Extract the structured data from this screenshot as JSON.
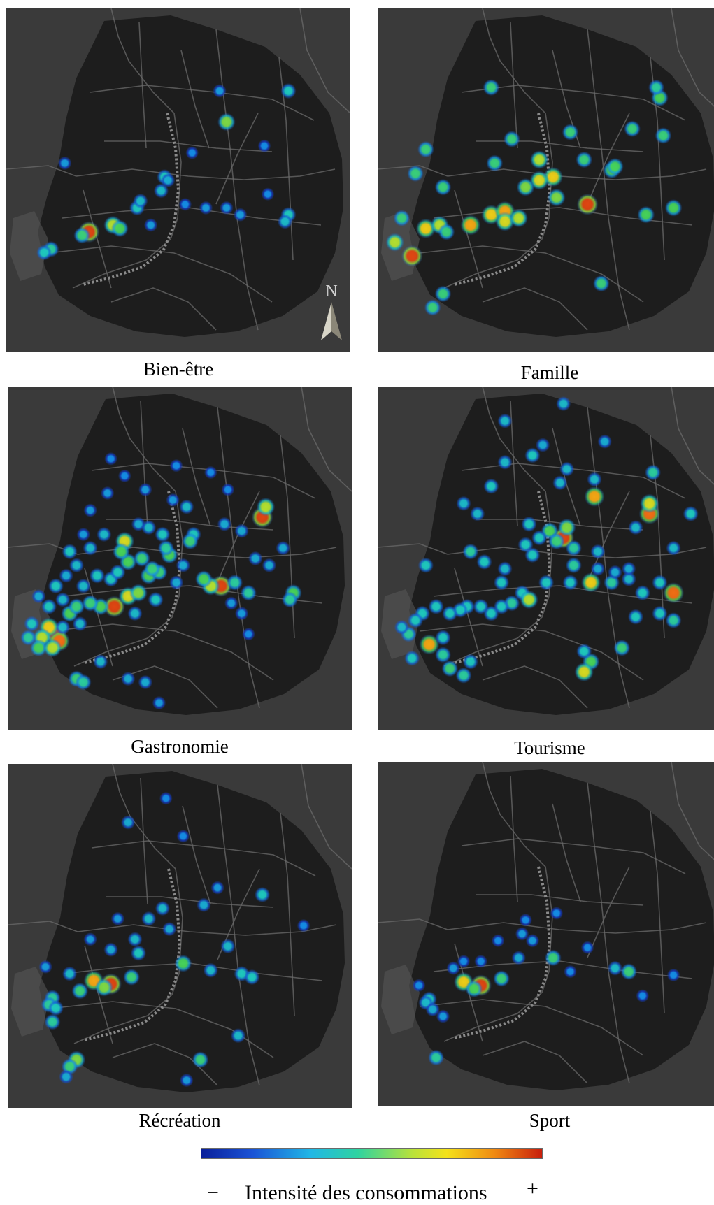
{
  "panels": [
    {
      "caption": "Bien-être",
      "compass_letter": "N",
      "points": [
        [
          0.24,
          0.65,
          0.95
        ],
        [
          0.31,
          0.63,
          0.7
        ],
        [
          0.33,
          0.64,
          0.6
        ],
        [
          0.22,
          0.66,
          0.55
        ],
        [
          0.13,
          0.7,
          0.5
        ],
        [
          0.11,
          0.71,
          0.45
        ],
        [
          0.38,
          0.58,
          0.45
        ],
        [
          0.39,
          0.56,
          0.4
        ],
        [
          0.46,
          0.49,
          0.45
        ],
        [
          0.45,
          0.53,
          0.4
        ],
        [
          0.47,
          0.5,
          0.35
        ],
        [
          0.64,
          0.33,
          0.65
        ],
        [
          0.82,
          0.6,
          0.45
        ],
        [
          0.81,
          0.62,
          0.4
        ],
        [
          0.64,
          0.58,
          0.3
        ],
        [
          0.58,
          0.58,
          0.3
        ],
        [
          0.68,
          0.6,
          0.3
        ],
        [
          0.52,
          0.57,
          0.25
        ],
        [
          0.82,
          0.24,
          0.45
        ],
        [
          0.62,
          0.24,
          0.3
        ],
        [
          0.75,
          0.4,
          0.25
        ],
        [
          0.17,
          0.45,
          0.3
        ],
        [
          0.76,
          0.54,
          0.25
        ],
        [
          0.54,
          0.42,
          0.25
        ],
        [
          0.42,
          0.63,
          0.3
        ]
      ]
    },
    {
      "caption": "Famille",
      "points": [
        [
          0.1,
          0.72,
          0.95
        ],
        [
          0.05,
          0.68,
          0.7
        ],
        [
          0.14,
          0.64,
          0.8
        ],
        [
          0.18,
          0.63,
          0.7
        ],
        [
          0.27,
          0.63,
          0.85
        ],
        [
          0.33,
          0.6,
          0.8
        ],
        [
          0.37,
          0.59,
          0.85
        ],
        [
          0.37,
          0.62,
          0.75
        ],
        [
          0.41,
          0.61,
          0.7
        ],
        [
          0.61,
          0.57,
          0.95
        ],
        [
          0.51,
          0.49,
          0.8
        ],
        [
          0.47,
          0.5,
          0.75
        ],
        [
          0.47,
          0.44,
          0.7
        ],
        [
          0.43,
          0.52,
          0.65
        ],
        [
          0.52,
          0.55,
          0.65
        ],
        [
          0.78,
          0.6,
          0.6
        ],
        [
          0.86,
          0.58,
          0.6
        ],
        [
          0.68,
          0.47,
          0.6
        ],
        [
          0.6,
          0.44,
          0.55
        ],
        [
          0.19,
          0.52,
          0.55
        ],
        [
          0.11,
          0.48,
          0.55
        ],
        [
          0.14,
          0.41,
          0.55
        ],
        [
          0.2,
          0.65,
          0.55
        ],
        [
          0.34,
          0.45,
          0.55
        ],
        [
          0.39,
          0.38,
          0.55
        ],
        [
          0.56,
          0.36,
          0.55
        ],
        [
          0.74,
          0.35,
          0.55
        ],
        [
          0.83,
          0.37,
          0.55
        ],
        [
          0.82,
          0.26,
          0.6
        ],
        [
          0.33,
          0.23,
          0.55
        ],
        [
          0.65,
          0.8,
          0.55
        ],
        [
          0.19,
          0.83,
          0.55
        ],
        [
          0.16,
          0.87,
          0.55
        ],
        [
          0.81,
          0.23,
          0.5
        ],
        [
          0.07,
          0.61,
          0.55
        ],
        [
          0.69,
          0.46,
          0.6
        ]
      ]
    },
    {
      "caption": "Gastronomie",
      "points": [
        [
          0.14,
          0.72,
          0.95
        ],
        [
          0.15,
          0.74,
          0.9
        ],
        [
          0.12,
          0.7,
          0.8
        ],
        [
          0.1,
          0.73,
          0.7
        ],
        [
          0.09,
          0.76,
          0.6
        ],
        [
          0.13,
          0.76,
          0.7
        ],
        [
          0.31,
          0.64,
          0.95
        ],
        [
          0.35,
          0.61,
          0.75
        ],
        [
          0.38,
          0.6,
          0.65
        ],
        [
          0.27,
          0.64,
          0.6
        ],
        [
          0.24,
          0.63,
          0.55
        ],
        [
          0.18,
          0.66,
          0.6
        ],
        [
          0.2,
          0.64,
          0.55
        ],
        [
          0.41,
          0.55,
          0.6
        ],
        [
          0.44,
          0.54,
          0.55
        ],
        [
          0.47,
          0.49,
          0.6
        ],
        [
          0.46,
          0.47,
          0.5
        ],
        [
          0.35,
          0.51,
          0.6
        ],
        [
          0.34,
          0.45,
          0.75
        ],
        [
          0.33,
          0.48,
          0.6
        ],
        [
          0.39,
          0.5,
          0.55
        ],
        [
          0.42,
          0.53,
          0.55
        ],
        [
          0.62,
          0.58,
          0.95
        ],
        [
          0.59,
          0.58,
          0.7
        ],
        [
          0.57,
          0.56,
          0.6
        ],
        [
          0.66,
          0.57,
          0.5
        ],
        [
          0.7,
          0.6,
          0.5
        ],
        [
          0.83,
          0.6,
          0.6
        ],
        [
          0.82,
          0.62,
          0.5
        ],
        [
          0.74,
          0.38,
          0.95
        ],
        [
          0.75,
          0.35,
          0.7
        ],
        [
          0.52,
          0.35,
          0.4
        ],
        [
          0.54,
          0.43,
          0.45
        ],
        [
          0.53,
          0.45,
          0.55
        ],
        [
          0.45,
          0.43,
          0.45
        ],
        [
          0.41,
          0.41,
          0.4
        ],
        [
          0.38,
          0.4,
          0.35
        ],
        [
          0.28,
          0.43,
          0.4
        ],
        [
          0.24,
          0.47,
          0.4
        ],
        [
          0.18,
          0.48,
          0.45
        ],
        [
          0.2,
          0.52,
          0.4
        ],
        [
          0.14,
          0.58,
          0.45
        ],
        [
          0.16,
          0.62,
          0.4
        ],
        [
          0.22,
          0.58,
          0.4
        ],
        [
          0.26,
          0.55,
          0.45
        ],
        [
          0.3,
          0.56,
          0.45
        ],
        [
          0.32,
          0.54,
          0.45
        ],
        [
          0.43,
          0.62,
          0.45
        ],
        [
          0.37,
          0.66,
          0.4
        ],
        [
          0.2,
          0.85,
          0.55
        ],
        [
          0.22,
          0.86,
          0.5
        ],
        [
          0.27,
          0.8,
          0.4
        ],
        [
          0.35,
          0.85,
          0.35
        ],
        [
          0.4,
          0.86,
          0.35
        ],
        [
          0.44,
          0.92,
          0.3
        ],
        [
          0.12,
          0.64,
          0.45
        ],
        [
          0.16,
          0.7,
          0.4
        ],
        [
          0.21,
          0.69,
          0.4
        ],
        [
          0.06,
          0.73,
          0.5
        ],
        [
          0.07,
          0.69,
          0.45
        ],
        [
          0.49,
          0.57,
          0.35
        ],
        [
          0.51,
          0.52,
          0.35
        ],
        [
          0.63,
          0.4,
          0.35
        ],
        [
          0.68,
          0.42,
          0.35
        ],
        [
          0.72,
          0.5,
          0.35
        ],
        [
          0.76,
          0.52,
          0.35
        ],
        [
          0.8,
          0.47,
          0.35
        ],
        [
          0.48,
          0.33,
          0.3
        ],
        [
          0.4,
          0.3,
          0.3
        ],
        [
          0.34,
          0.26,
          0.25
        ],
        [
          0.29,
          0.31,
          0.3
        ],
        [
          0.3,
          0.21,
          0.25
        ],
        [
          0.24,
          0.36,
          0.3
        ],
        [
          0.49,
          0.23,
          0.25
        ],
        [
          0.59,
          0.25,
          0.25
        ],
        [
          0.64,
          0.3,
          0.25
        ],
        [
          0.22,
          0.43,
          0.3
        ],
        [
          0.17,
          0.55,
          0.35
        ],
        [
          0.65,
          0.63,
          0.3
        ],
        [
          0.68,
          0.66,
          0.3
        ],
        [
          0.7,
          0.72,
          0.25
        ],
        [
          0.09,
          0.61,
          0.35
        ]
      ]
    },
    {
      "caption": "Tourisme",
      "points": [
        [
          0.54,
          0.44,
          0.95
        ],
        [
          0.55,
          0.41,
          0.65
        ],
        [
          0.5,
          0.42,
          0.6
        ],
        [
          0.52,
          0.45,
          0.55
        ],
        [
          0.63,
          0.32,
          0.85
        ],
        [
          0.79,
          0.37,
          0.9
        ],
        [
          0.79,
          0.34,
          0.75
        ],
        [
          0.86,
          0.6,
          0.9
        ],
        [
          0.57,
          0.47,
          0.5
        ],
        [
          0.47,
          0.44,
          0.45
        ],
        [
          0.43,
          0.46,
          0.45
        ],
        [
          0.44,
          0.4,
          0.45
        ],
        [
          0.45,
          0.49,
          0.45
        ],
        [
          0.57,
          0.52,
          0.5
        ],
        [
          0.62,
          0.57,
          0.8
        ],
        [
          0.56,
          0.57,
          0.45
        ],
        [
          0.49,
          0.57,
          0.45
        ],
        [
          0.42,
          0.6,
          0.45
        ],
        [
          0.44,
          0.62,
          0.7
        ],
        [
          0.39,
          0.63,
          0.5
        ],
        [
          0.36,
          0.64,
          0.45
        ],
        [
          0.33,
          0.66,
          0.45
        ],
        [
          0.3,
          0.64,
          0.45
        ],
        [
          0.26,
          0.64,
          0.45
        ],
        [
          0.24,
          0.65,
          0.45
        ],
        [
          0.21,
          0.66,
          0.45
        ],
        [
          0.17,
          0.64,
          0.45
        ],
        [
          0.13,
          0.66,
          0.45
        ],
        [
          0.11,
          0.68,
          0.45
        ],
        [
          0.09,
          0.72,
          0.5
        ],
        [
          0.15,
          0.75,
          0.85
        ],
        [
          0.19,
          0.73,
          0.45
        ],
        [
          0.19,
          0.78,
          0.5
        ],
        [
          0.21,
          0.82,
          0.55
        ],
        [
          0.25,
          0.84,
          0.5
        ],
        [
          0.27,
          0.8,
          0.45
        ],
        [
          0.36,
          0.57,
          0.45
        ],
        [
          0.27,
          0.48,
          0.5
        ],
        [
          0.14,
          0.52,
          0.45
        ],
        [
          0.31,
          0.51,
          0.45
        ],
        [
          0.37,
          0.53,
          0.4
        ],
        [
          0.68,
          0.57,
          0.5
        ],
        [
          0.73,
          0.56,
          0.4
        ],
        [
          0.77,
          0.6,
          0.45
        ],
        [
          0.82,
          0.57,
          0.45
        ],
        [
          0.75,
          0.67,
          0.45
        ],
        [
          0.82,
          0.66,
          0.45
        ],
        [
          0.86,
          0.68,
          0.5
        ],
        [
          0.62,
          0.8,
          0.6
        ],
        [
          0.6,
          0.77,
          0.45
        ],
        [
          0.6,
          0.83,
          0.75
        ],
        [
          0.71,
          0.76,
          0.55
        ],
        [
          0.8,
          0.25,
          0.5
        ],
        [
          0.63,
          0.27,
          0.4
        ],
        [
          0.55,
          0.24,
          0.4
        ],
        [
          0.45,
          0.2,
          0.45
        ],
        [
          0.37,
          0.22,
          0.4
        ],
        [
          0.33,
          0.29,
          0.45
        ],
        [
          0.29,
          0.37,
          0.4
        ],
        [
          0.25,
          0.34,
          0.4
        ],
        [
          0.53,
          0.28,
          0.4
        ],
        [
          0.64,
          0.48,
          0.4
        ],
        [
          0.75,
          0.41,
          0.4
        ],
        [
          0.86,
          0.47,
          0.4
        ],
        [
          0.91,
          0.37,
          0.45
        ],
        [
          0.54,
          0.05,
          0.4
        ],
        [
          0.37,
          0.1,
          0.4
        ],
        [
          0.48,
          0.17,
          0.35
        ],
        [
          0.66,
          0.16,
          0.35
        ],
        [
          0.73,
          0.53,
          0.35
        ],
        [
          0.07,
          0.7,
          0.4
        ],
        [
          0.1,
          0.79,
          0.45
        ],
        [
          0.64,
          0.53,
          0.35
        ],
        [
          0.69,
          0.54,
          0.35
        ]
      ]
    },
    {
      "caption": "Récréation",
      "points": [
        [
          0.3,
          0.64,
          0.95
        ],
        [
          0.25,
          0.63,
          0.85
        ],
        [
          0.28,
          0.65,
          0.65
        ],
        [
          0.21,
          0.66,
          0.55
        ],
        [
          0.13,
          0.68,
          0.5
        ],
        [
          0.12,
          0.7,
          0.5
        ],
        [
          0.14,
          0.71,
          0.45
        ],
        [
          0.13,
          0.75,
          0.5
        ],
        [
          0.36,
          0.62,
          0.55
        ],
        [
          0.51,
          0.58,
          0.6
        ],
        [
          0.59,
          0.6,
          0.4
        ],
        [
          0.68,
          0.61,
          0.45
        ],
        [
          0.71,
          0.62,
          0.45
        ],
        [
          0.38,
          0.55,
          0.45
        ],
        [
          0.37,
          0.51,
          0.4
        ],
        [
          0.41,
          0.45,
          0.4
        ],
        [
          0.45,
          0.42,
          0.4
        ],
        [
          0.47,
          0.48,
          0.35
        ],
        [
          0.57,
          0.41,
          0.35
        ],
        [
          0.74,
          0.38,
          0.45
        ],
        [
          0.64,
          0.53,
          0.4
        ],
        [
          0.18,
          0.61,
          0.4
        ],
        [
          0.2,
          0.86,
          0.65
        ],
        [
          0.18,
          0.88,
          0.55
        ],
        [
          0.56,
          0.86,
          0.55
        ],
        [
          0.67,
          0.79,
          0.4
        ],
        [
          0.35,
          0.17,
          0.35
        ],
        [
          0.46,
          0.1,
          0.25
        ],
        [
          0.3,
          0.54,
          0.35
        ],
        [
          0.24,
          0.51,
          0.3
        ],
        [
          0.11,
          0.59,
          0.3
        ],
        [
          0.32,
          0.45,
          0.3
        ],
        [
          0.61,
          0.36,
          0.3
        ],
        [
          0.51,
          0.21,
          0.25
        ],
        [
          0.86,
          0.47,
          0.25
        ],
        [
          0.17,
          0.91,
          0.35
        ],
        [
          0.52,
          0.92,
          0.3
        ]
      ]
    },
    {
      "caption": "Sport",
      "points": [
        [
          0.3,
          0.65,
          0.95
        ],
        [
          0.25,
          0.64,
          0.8
        ],
        [
          0.28,
          0.66,
          0.6
        ],
        [
          0.36,
          0.63,
          0.55
        ],
        [
          0.51,
          0.57,
          0.55
        ],
        [
          0.73,
          0.61,
          0.55
        ],
        [
          0.69,
          0.6,
          0.4
        ],
        [
          0.15,
          0.69,
          0.45
        ],
        [
          0.14,
          0.7,
          0.4
        ],
        [
          0.16,
          0.72,
          0.35
        ],
        [
          0.17,
          0.86,
          0.5
        ],
        [
          0.41,
          0.57,
          0.35
        ],
        [
          0.45,
          0.52,
          0.3
        ],
        [
          0.42,
          0.5,
          0.3
        ],
        [
          0.35,
          0.52,
          0.25
        ],
        [
          0.77,
          0.68,
          0.25
        ],
        [
          0.86,
          0.62,
          0.25
        ],
        [
          0.52,
          0.44,
          0.25
        ],
        [
          0.61,
          0.54,
          0.25
        ],
        [
          0.22,
          0.6,
          0.3
        ],
        [
          0.19,
          0.74,
          0.3
        ],
        [
          0.25,
          0.58,
          0.25
        ],
        [
          0.43,
          0.46,
          0.25
        ],
        [
          0.3,
          0.58,
          0.25
        ],
        [
          0.56,
          0.61,
          0.25
        ],
        [
          0.12,
          0.65,
          0.25
        ]
      ]
    }
  ],
  "colorbar": {
    "minus": "−",
    "label": "Intensité des consommations",
    "plus": "+"
  },
  "colors": {
    "map_bg": "#3a3a3a",
    "land": "#1d1d1d",
    "road": "#6b6b6b",
    "water": "#555555"
  }
}
